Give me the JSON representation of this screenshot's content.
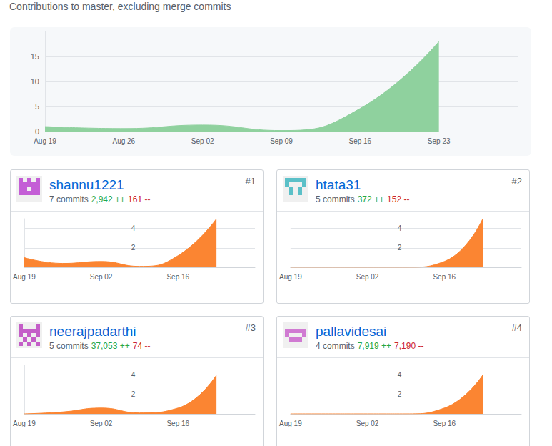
{
  "header": "Contributions to master, excluding merge commits",
  "chart_data": [
    {
      "type": "area",
      "categories": [
        "Aug 19",
        "Aug 26",
        "Sep 02",
        "Sep 09",
        "Sep 16",
        "Sep 23",
        null
      ],
      "values": [
        1,
        0.6,
        1.3,
        0.2,
        4.6,
        18,
        null
      ],
      "color": "#8fd19e",
      "ylim": [
        0,
        20
      ],
      "yticks": [
        0,
        5,
        10,
        15
      ],
      "grid": true
    },
    {
      "type": "area",
      "categories": [
        "Aug 19",
        null,
        "Sep 02",
        null,
        "Sep 16",
        null,
        null
      ],
      "values": [
        1,
        0.4,
        0.6,
        0.1,
        1.2,
        5,
        null
      ],
      "color": "#fb8532",
      "ylim": [
        0,
        5
      ],
      "yticks": [
        2,
        4
      ],
      "grid": true
    },
    {
      "type": "area",
      "categories": [
        "Aug 19",
        null,
        "Sep 02",
        null,
        "Sep 16",
        null,
        null
      ],
      "values": [
        0,
        0,
        0,
        0,
        0.6,
        5,
        null
      ],
      "color": "#fb8532",
      "ylim": [
        0,
        5
      ],
      "yticks": [
        2,
        4
      ],
      "grid": true
    },
    {
      "type": "area",
      "categories": [
        "Aug 19",
        null,
        "Sep 02",
        null,
        "Sep 16",
        null,
        null
      ],
      "values": [
        0,
        0.2,
        0.6,
        0.1,
        0.6,
        4,
        null
      ],
      "color": "#fb8532",
      "ylim": [
        0,
        5
      ],
      "yticks": [
        2,
        4
      ],
      "grid": true
    },
    {
      "type": "area",
      "categories": [
        "Aug 19",
        null,
        "Sep 02",
        null,
        "Sep 16",
        null,
        null
      ],
      "values": [
        0,
        0,
        0,
        0,
        0.6,
        4,
        null
      ],
      "color": "#fb8532",
      "ylim": [
        0,
        5
      ],
      "yticks": [
        2,
        4
      ],
      "grid": true
    }
  ],
  "contributors": [
    {
      "name": "shannu1221",
      "rank": "#1",
      "commits": "7 commits",
      "additions": "2,942 ++",
      "deletions": "161 --"
    },
    {
      "name": "htata31",
      "rank": "#2",
      "commits": "5 commits",
      "additions": "372 ++",
      "deletions": "152 --"
    },
    {
      "name": "neerajpadarthi",
      "rank": "#3",
      "commits": "5 commits",
      "additions": "37,053 ++",
      "deletions": "74 --"
    },
    {
      "name": "pallavidesai",
      "rank": "#4",
      "commits": "4 commits",
      "additions": "7,919 ++",
      "deletions": "7,190 --"
    }
  ]
}
